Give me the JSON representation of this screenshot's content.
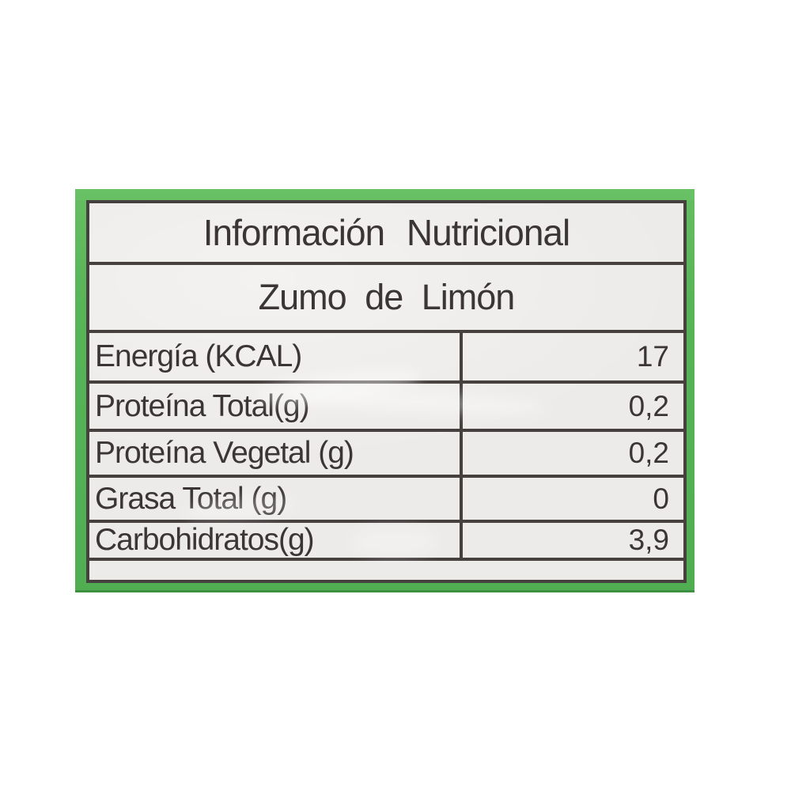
{
  "label": {
    "title": "Información Nutricional",
    "subtitle": "Zumo de Limón",
    "nutrients": [
      {
        "name": "Energía (KCAL)",
        "value": "17"
      },
      {
        "name": "Proteína Total(g)",
        "value": "0,2"
      },
      {
        "name": "Proteína Vegetal (g)",
        "value": "0,2"
      },
      {
        "name": "Grasa Total (g)",
        "value": "0"
      },
      {
        "name": "Carbohidratos(g)",
        "value": "3,9"
      }
    ],
    "colors": {
      "frame_green": "#57b457",
      "frame_green_dark": "#2f7a33",
      "sheet_background": "#edebe9",
      "grid_line": "#46403f",
      "text": "#3b3536",
      "page_background": "#ffffff"
    }
  }
}
